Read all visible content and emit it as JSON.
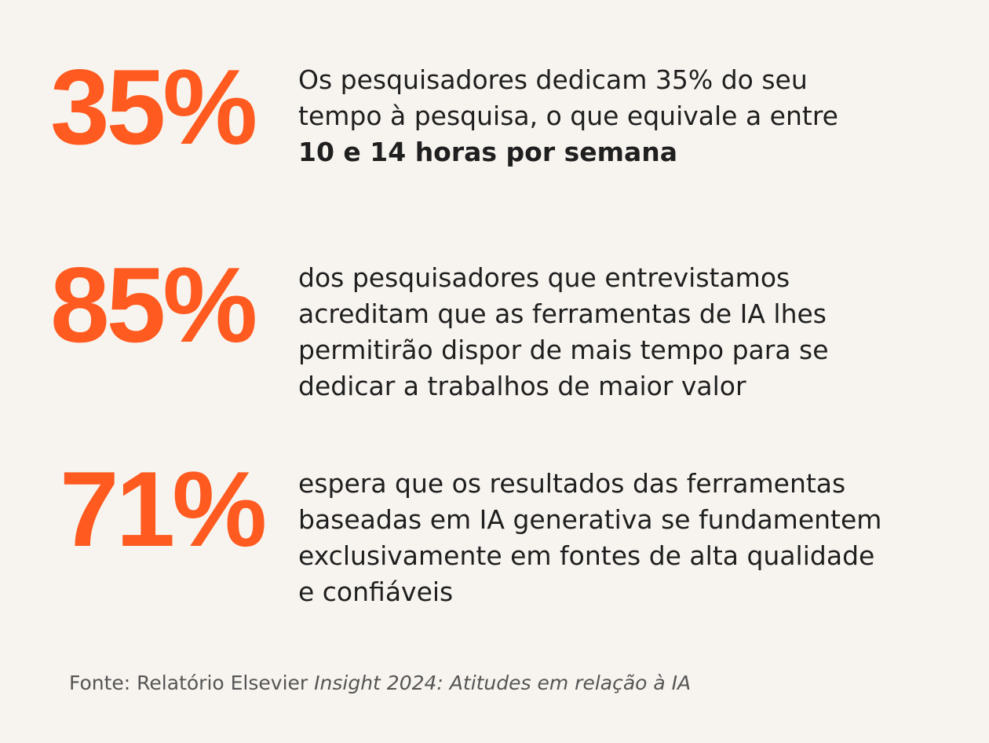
{
  "colors": {
    "background": "#f7f4ef",
    "accent": "#ff5a1f",
    "text": "#1f1f1f",
    "muted": "#555555"
  },
  "stats": [
    {
      "value": "35%",
      "lines": [
        "Os pesquisadores dedicam 35% do seu",
        "tempo à pesquisa, o que equivale a entre"
      ],
      "bold_line": "10 e 14 horas por semana"
    },
    {
      "value": "85%",
      "lines": [
        "dos pesquisadores que entrevistamos",
        "acreditam que as ferramentas de IA lhes",
        "permitirão dispor de mais tempo para se",
        "dedicar a trabalhos de maior valor"
      ]
    },
    {
      "value": "71%",
      "lines": [
        "espera que os resultados das ferramentas",
        "baseadas em IA generativa se fundamentem",
        "exclusivamente em fontes de alta qualidade",
        "e confiáveis"
      ]
    }
  ],
  "source": {
    "prefix": "Fonte: Relatório Elsevier ",
    "title": "Insight 2024: Atitudes em relação à IA"
  }
}
